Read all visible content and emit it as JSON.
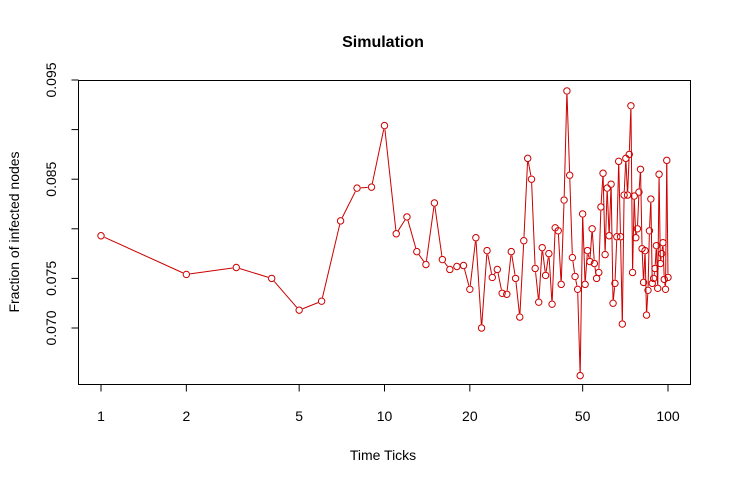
{
  "chart_data": {
    "type": "line",
    "title": "Simulation",
    "xlabel": "Time Ticks",
    "ylabel": "Fraction of infected nodes",
    "x_scale": "log",
    "xlim": [
      1,
      100
    ],
    "ylim": [
      0.0672,
      0.0949
    ],
    "x_ticks": [
      1,
      2,
      5,
      10,
      20,
      50,
      100
    ],
    "x_tick_labels": [
      "1",
      "2",
      "5",
      "10",
      "20",
      "50",
      "100"
    ],
    "y_ticks": [
      0.07,
      0.075,
      0.08,
      0.085,
      0.09,
      0.095
    ],
    "y_tick_labels": [
      "0.070",
      "0.075",
      "",
      "0.085",
      "",
      "0.095"
    ],
    "grid": false,
    "legend": "none",
    "line_color": "#cc0000",
    "marker": "open-circle",
    "series": [
      {
        "x": [
          1,
          2,
          3,
          4,
          5,
          6,
          7,
          8,
          9,
          10,
          11,
          12,
          13,
          14,
          15,
          16,
          17,
          18,
          19,
          20,
          21,
          22,
          23,
          24,
          25,
          26,
          27,
          28,
          29,
          30,
          31,
          32,
          33,
          34,
          35,
          36,
          37,
          38,
          39,
          40,
          41,
          42,
          43,
          44,
          45,
          46,
          47,
          48,
          49,
          50,
          51,
          52,
          53,
          54,
          55,
          56,
          57,
          58,
          59,
          60,
          61,
          62,
          63,
          64,
          65,
          66,
          67,
          68,
          69,
          70,
          71,
          72,
          73,
          74,
          75,
          76,
          77,
          78,
          79,
          80,
          81,
          82,
          83,
          84,
          85,
          86,
          87,
          88,
          89,
          90,
          91,
          92,
          93,
          94,
          95,
          96,
          97,
          98,
          99,
          100
        ],
        "y": [
          0.0793,
          0.0754,
          0.0761,
          0.075,
          0.0718,
          0.0727,
          0.0808,
          0.0841,
          0.0842,
          0.0904,
          0.0795,
          0.0812,
          0.0777,
          0.0764,
          0.0826,
          0.0769,
          0.0759,
          0.0762,
          0.0763,
          0.0739,
          0.0791,
          0.07,
          0.0778,
          0.0751,
          0.0759,
          0.0735,
          0.0734,
          0.0777,
          0.075,
          0.0711,
          0.0788,
          0.0871,
          0.085,
          0.076,
          0.0726,
          0.0781,
          0.0753,
          0.0775,
          0.0724,
          0.0801,
          0.0798,
          0.0744,
          0.0829,
          0.0939,
          0.0854,
          0.0771,
          0.0752,
          0.0739,
          0.0652,
          0.0815,
          0.0744,
          0.0778,
          0.0767,
          0.08,
          0.0765,
          0.075,
          0.0756,
          0.0822,
          0.0856,
          0.0774,
          0.0841,
          0.0793,
          0.0845,
          0.0725,
          0.0745,
          0.0792,
          0.0868,
          0.0792,
          0.0704,
          0.0834,
          0.0871,
          0.0834,
          0.0875,
          0.0924,
          0.0756,
          0.0833,
          0.0791,
          0.08,
          0.0837,
          0.086,
          0.078,
          0.0746,
          0.0778,
          0.0713,
          0.0738,
          0.0798,
          0.083,
          0.0745,
          0.075,
          0.076,
          0.0783,
          0.074,
          0.0855,
          0.0765,
          0.0775,
          0.0786,
          0.0749,
          0.0739,
          0.0869,
          0.0751
        ]
      }
    ]
  }
}
